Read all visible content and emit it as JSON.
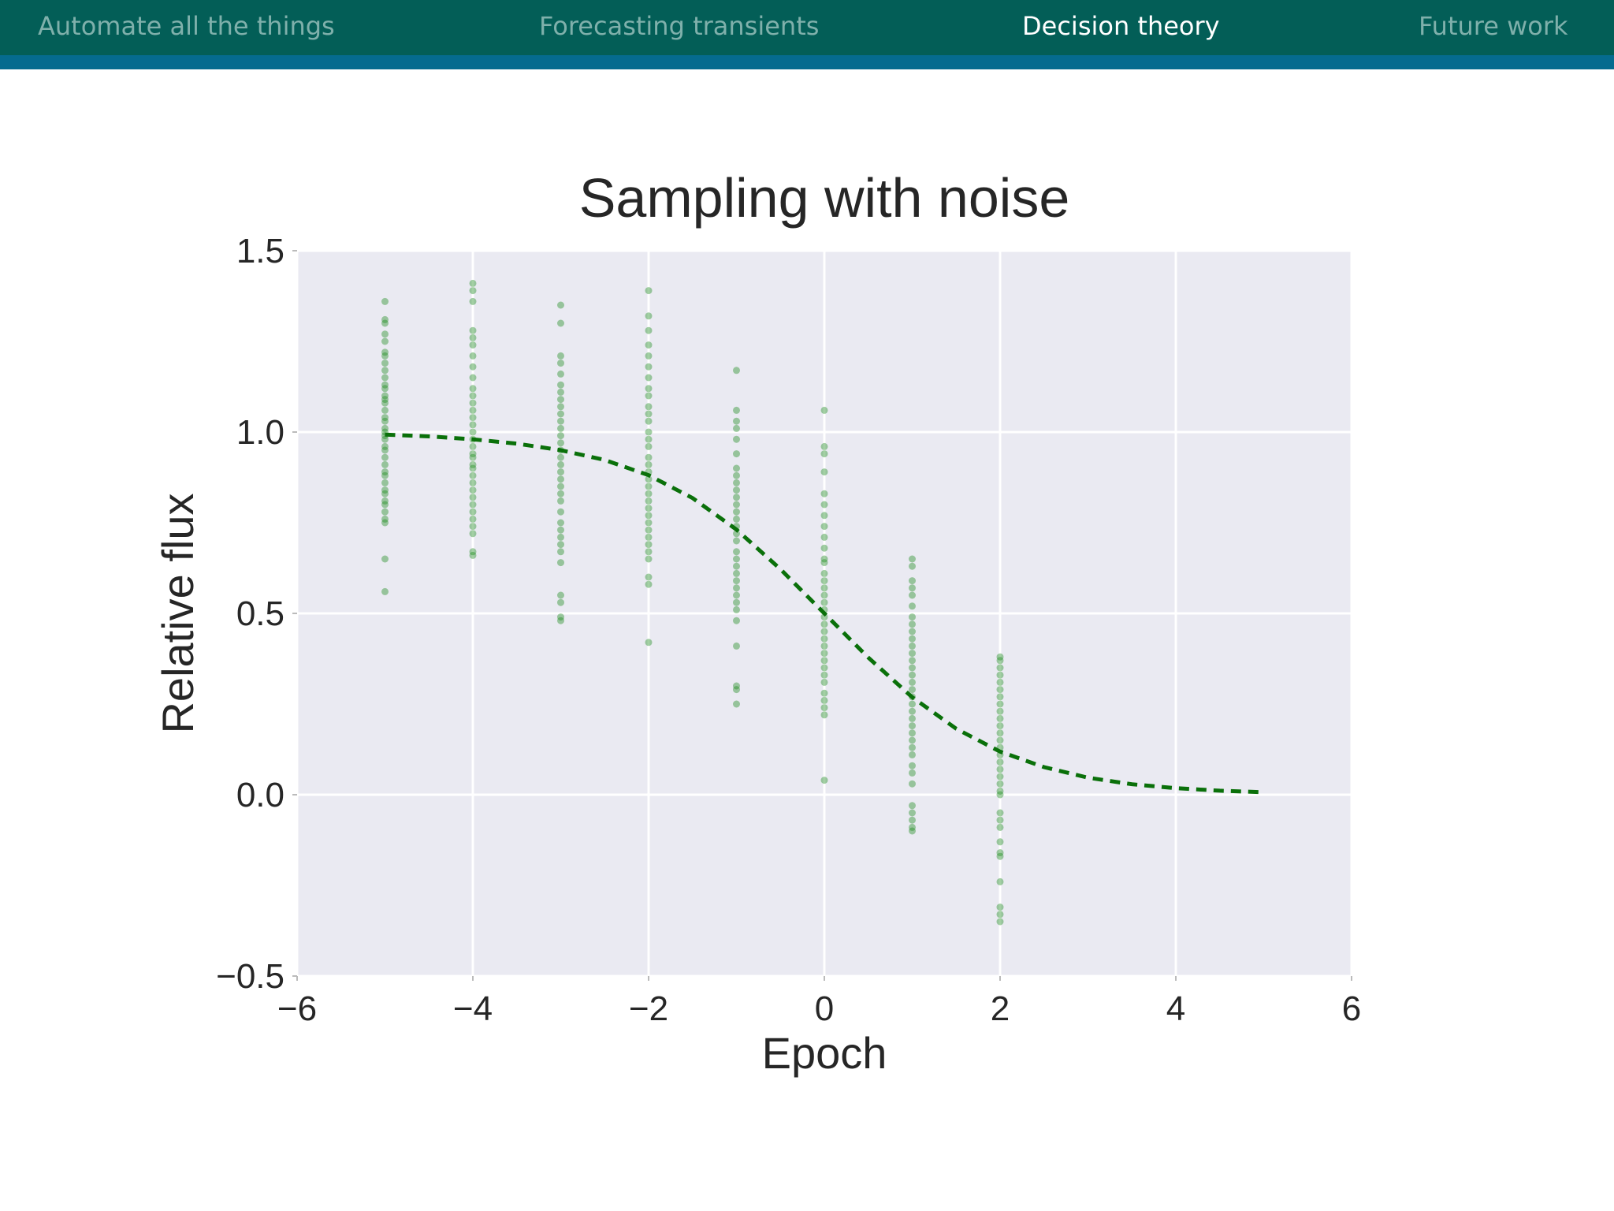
{
  "nav": {
    "items": [
      {
        "label": "Automate all the things",
        "active": false
      },
      {
        "label": "Forecasting transients",
        "active": false
      },
      {
        "label": "Decision theory",
        "active": true
      },
      {
        "label": "Future work",
        "active": false
      }
    ],
    "bar_color": "#035e57",
    "stripe_color": "#056b8f"
  },
  "chart_data": {
    "type": "scatter",
    "title": "Sampling with noise",
    "xlabel": "Epoch",
    "ylabel": "Relative flux",
    "xlim": [
      -6,
      6
    ],
    "ylim": [
      -0.5,
      1.5
    ],
    "xticks": [
      -6,
      -4,
      -2,
      0,
      2,
      4,
      6
    ],
    "yticks": [
      -0.5,
      0.0,
      0.5,
      1.0,
      1.5
    ],
    "xtick_labels": [
      "−6",
      "−4",
      "−2",
      "0",
      "2",
      "4",
      "6"
    ],
    "ytick_labels": [
      "−0.5",
      "0.0",
      "0.5",
      "1.0",
      "1.5"
    ],
    "grid": true,
    "background_color": "#eaeaf2",
    "series": [
      {
        "kind": "scatter",
        "color": "#1a8a1a",
        "opacity": 0.4,
        "points": [
          {
            "x": -5,
            "y": [
              1.36,
              1.31,
              1.3,
              1.27,
              1.25,
              1.22,
              1.21,
              1.19,
              1.17,
              1.15,
              1.13,
              1.12,
              1.1,
              1.09,
              1.08,
              1.06,
              1.04,
              1.03,
              1.01,
              1.0,
              0.99,
              0.98,
              0.96,
              0.95,
              0.93,
              0.91,
              0.89,
              0.88,
              0.86,
              0.84,
              0.83,
              0.81,
              0.8,
              0.78,
              0.76,
              0.75,
              0.65,
              0.56
            ]
          },
          {
            "x": -4,
            "y": [
              1.41,
              1.39,
              1.36,
              1.28,
              1.26,
              1.24,
              1.21,
              1.18,
              1.15,
              1.12,
              1.1,
              1.08,
              1.06,
              1.04,
              1.02,
              1.0,
              0.98,
              0.96,
              0.94,
              0.93,
              0.91,
              0.9,
              0.88,
              0.86,
              0.84,
              0.82,
              0.8,
              0.78,
              0.76,
              0.74,
              0.72,
              0.67,
              0.66
            ]
          },
          {
            "x": -3,
            "y": [
              1.35,
              1.3,
              1.21,
              1.19,
              1.16,
              1.13,
              1.11,
              1.09,
              1.07,
              1.05,
              1.03,
              1.01,
              0.99,
              0.97,
              0.95,
              0.93,
              0.91,
              0.89,
              0.87,
              0.85,
              0.83,
              0.81,
              0.78,
              0.75,
              0.73,
              0.71,
              0.69,
              0.67,
              0.64,
              0.55,
              0.53,
              0.49,
              0.48
            ]
          },
          {
            "x": -2,
            "y": [
              1.39,
              1.32,
              1.28,
              1.24,
              1.21,
              1.18,
              1.15,
              1.12,
              1.1,
              1.07,
              1.05,
              1.03,
              1.0,
              0.98,
              0.96,
              0.93,
              0.91,
              0.89,
              0.87,
              0.85,
              0.83,
              0.81,
              0.79,
              0.77,
              0.75,
              0.73,
              0.71,
              0.69,
              0.67,
              0.65,
              0.6,
              0.58,
              0.42
            ]
          },
          {
            "x": -1,
            "y": [
              1.17,
              1.06,
              1.03,
              1.01,
              0.98,
              0.94,
              0.9,
              0.88,
              0.86,
              0.84,
              0.82,
              0.8,
              0.78,
              0.76,
              0.74,
              0.72,
              0.7,
              0.67,
              0.65,
              0.63,
              0.61,
              0.59,
              0.57,
              0.55,
              0.53,
              0.51,
              0.48,
              0.41,
              0.3,
              0.29,
              0.25
            ]
          },
          {
            "x": 0,
            "y": [
              1.06,
              0.96,
              0.94,
              0.89,
              0.83,
              0.8,
              0.77,
              0.74,
              0.71,
              0.68,
              0.65,
              0.64,
              0.61,
              0.59,
              0.57,
              0.55,
              0.53,
              0.51,
              0.49,
              0.47,
              0.45,
              0.43,
              0.41,
              0.39,
              0.37,
              0.35,
              0.33,
              0.31,
              0.28,
              0.26,
              0.24,
              0.22,
              0.04
            ]
          },
          {
            "x": 1,
            "y": [
              0.65,
              0.63,
              0.59,
              0.57,
              0.55,
              0.52,
              0.49,
              0.47,
              0.45,
              0.43,
              0.41,
              0.39,
              0.37,
              0.35,
              0.33,
              0.31,
              0.29,
              0.27,
              0.25,
              0.23,
              0.21,
              0.19,
              0.17,
              0.15,
              0.13,
              0.11,
              0.08,
              0.06,
              0.03,
              -0.03,
              -0.05,
              -0.07,
              -0.09,
              -0.1
            ]
          },
          {
            "x": 2,
            "y": [
              0.38,
              0.37,
              0.35,
              0.33,
              0.31,
              0.29,
              0.27,
              0.25,
              0.23,
              0.21,
              0.19,
              0.17,
              0.15,
              0.13,
              0.11,
              0.09,
              0.07,
              0.05,
              0.03,
              0.01,
              0.0,
              -0.05,
              -0.07,
              -0.09,
              -0.13,
              -0.16,
              -0.17,
              -0.24,
              -0.31,
              -0.33,
              -0.35
            ]
          }
        ]
      },
      {
        "kind": "line",
        "style": "dashed",
        "color": "#0a700a",
        "x": [
          -5.0,
          -4.5,
          -4.0,
          -3.5,
          -3.0,
          -2.5,
          -2.0,
          -1.5,
          -1.0,
          -0.5,
          0.0,
          0.5,
          1.0,
          1.5,
          2.0,
          2.5,
          3.0,
          3.5,
          4.0,
          4.5,
          5.0
        ],
        "y": [
          0.993,
          0.988,
          0.98,
          0.968,
          0.95,
          0.923,
          0.881,
          0.818,
          0.731,
          0.622,
          0.5,
          0.378,
          0.269,
          0.182,
          0.119,
          0.076,
          0.047,
          0.029,
          0.018,
          0.011,
          0.007
        ]
      }
    ]
  }
}
